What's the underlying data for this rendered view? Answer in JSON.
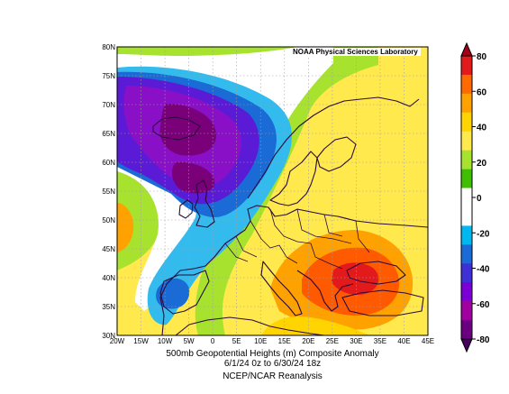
{
  "credit": "NOAA Physical Sciences Laboratory",
  "caption": {
    "line1": "500mb Geopotential Heights (m)   Composite Anomaly",
    "line2": "6/1/24 0z  to 6/30/24 18z",
    "line3": "NCEP/NCAR Reanalysis"
  },
  "map": {
    "lon_range": [
      -20,
      45
    ],
    "lat_range": [
      30,
      80
    ],
    "lon_ticks": [
      "20W",
      "15W",
      "10W",
      "5W",
      "0",
      "5E",
      "10E",
      "15E",
      "20E",
      "25E",
      "30E",
      "35E",
      "40E",
      "45E"
    ],
    "lat_ticks": [
      "30N",
      "35N",
      "40N",
      "45N",
      "50N",
      "55N",
      "60N",
      "65N",
      "70N",
      "75N",
      "80N"
    ],
    "grid": true
  },
  "colorbar": {
    "range": [
      -80,
      80
    ],
    "labels": [
      "80",
      "60",
      "40",
      "20",
      "0",
      "-20",
      "-40",
      "-60",
      "-80"
    ],
    "colors": [
      "#e31a1c",
      "#ff6a00",
      "#ffa200",
      "#ffd400",
      "#ffe94d",
      "#a6e22e",
      "#3fbf00",
      "#ffffff",
      "#ffffff",
      "#00b7ef",
      "#1a6bd6",
      "#3f2fd6",
      "#7a00d6",
      "#a000a0",
      "#6a0080"
    ]
  },
  "colors": {
    "neg_strong": "#7a007a",
    "neg_mid": "#5a1ad6",
    "neg_light": "#1a6bd6",
    "neg_weak": "#33bbee",
    "pos_weak": "#a6e22e",
    "pos_light": "#ffe94d",
    "pos_mid": "#ffa200",
    "pos_strong": "#ff5a00",
    "pos_max": "#e31a1c",
    "coast": "#2a0a3a"
  }
}
